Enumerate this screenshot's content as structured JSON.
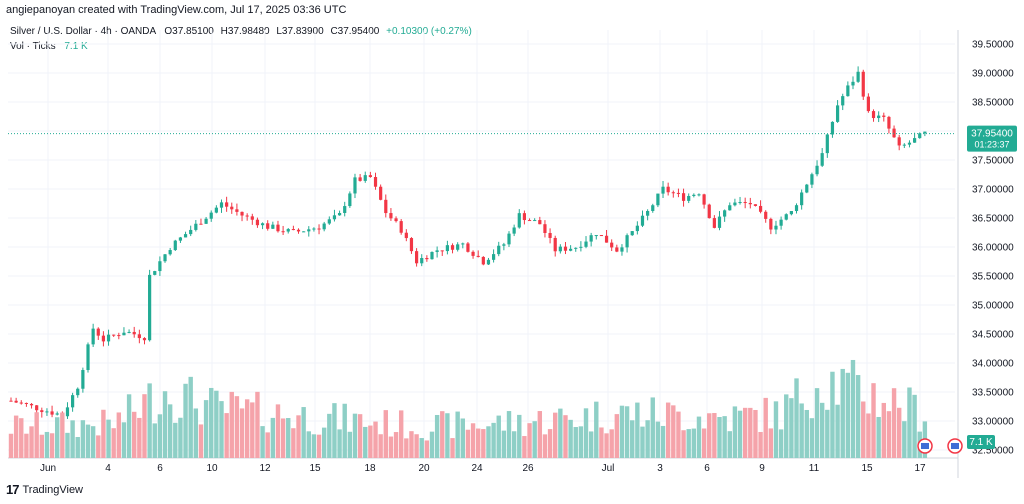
{
  "caption": "angiepanoyan created with TradingView.com, Jul 17, 2025 03:36 UTC",
  "legend": {
    "symbol": "Silver / U.S. Dollar · 4h · OANDA",
    "open": "O37.85100",
    "high": "H37.98480",
    "low": "L37.83900",
    "close": "C37.95400",
    "change": "+0.10300 (+0.27%)",
    "vol_label": "Vol · Ticks",
    "vol_value": "7.1 K"
  },
  "price_badge": {
    "price": "37.95400",
    "countdown": "01:23:37"
  },
  "vol_badge": "7.1 K",
  "footer": {
    "brand": "TradingView",
    "logo": "17"
  },
  "colors": {
    "up": "#22ab94",
    "down": "#f23645",
    "vol_up": "#8ecfc6",
    "vol_down": "#f5a3aa",
    "grid": "#f0f3fa",
    "axis_text": "#131722"
  },
  "chart_data": {
    "type": "candlestick",
    "interval": "4h",
    "x_ticks": [
      "Jun",
      "4",
      "6",
      "10",
      "12",
      "15",
      "18",
      "20",
      "24",
      "26",
      "Jul",
      "3",
      "6",
      "9",
      "11",
      "15",
      "17"
    ],
    "y_ticks": [
      "39.50000",
      "39.00000",
      "38.50000",
      "38.00000",
      "37.50000",
      "37.00000",
      "36.50000",
      "36.00000",
      "35.50000",
      "35.00000",
      "34.50000",
      "34.00000",
      "33.50000",
      "33.00000",
      "32.50000"
    ],
    "ylim": [
      32.5,
      39.5
    ],
    "last_price": 37.954,
    "price_anchors": [
      [
        0,
        33.35
      ],
      [
        6,
        33.2
      ],
      [
        10,
        33.1
      ],
      [
        13,
        33.6
      ],
      [
        16,
        34.6
      ],
      [
        18,
        34.4
      ],
      [
        22,
        34.55
      ],
      [
        26,
        34.45
      ],
      [
        27,
        35.5
      ],
      [
        31,
        36.0
      ],
      [
        35,
        36.3
      ],
      [
        39,
        36.6
      ],
      [
        41,
        36.75
      ],
      [
        45,
        36.55
      ],
      [
        50,
        36.35
      ],
      [
        55,
        36.25
      ],
      [
        60,
        36.35
      ],
      [
        64,
        36.55
      ],
      [
        67,
        37.15
      ],
      [
        70,
        37.2
      ],
      [
        73,
        36.6
      ],
      [
        76,
        36.3
      ],
      [
        79,
        35.75
      ],
      [
        83,
        35.95
      ],
      [
        88,
        36.05
      ],
      [
        92,
        35.75
      ],
      [
        96,
        36.05
      ],
      [
        99,
        36.55
      ],
      [
        103,
        36.4
      ],
      [
        106,
        35.95
      ],
      [
        110,
        36.0
      ],
      [
        114,
        36.25
      ],
      [
        118,
        35.95
      ],
      [
        121,
        36.25
      ],
      [
        124,
        36.6
      ],
      [
        127,
        37.0
      ],
      [
        131,
        36.85
      ],
      [
        134,
        36.95
      ],
      [
        137,
        36.35
      ],
      [
        140,
        36.75
      ],
      [
        144,
        36.75
      ],
      [
        148,
        36.35
      ],
      [
        152,
        36.6
      ],
      [
        155,
        37.1
      ],
      [
        158,
        37.6
      ],
      [
        161,
        38.45
      ],
      [
        163,
        38.75
      ],
      [
        165,
        39.0
      ],
      [
        167,
        38.3
      ],
      [
        170,
        38.2
      ],
      [
        173,
        37.7
      ],
      [
        176,
        37.85
      ],
      [
        178,
        37.954
      ]
    ],
    "volume_anchors": [
      [
        0,
        3.5
      ],
      [
        20,
        3.8
      ],
      [
        30,
        7.5
      ],
      [
        40,
        5.5
      ],
      [
        60,
        4.5
      ],
      [
        80,
        3.5
      ],
      [
        100,
        4.0
      ],
      [
        120,
        5.0
      ],
      [
        140,
        4.5
      ],
      [
        150,
        5.0
      ],
      [
        158,
        9.0
      ],
      [
        162,
        8.0
      ],
      [
        168,
        7.0
      ],
      [
        178,
        5.0
      ]
    ]
  }
}
